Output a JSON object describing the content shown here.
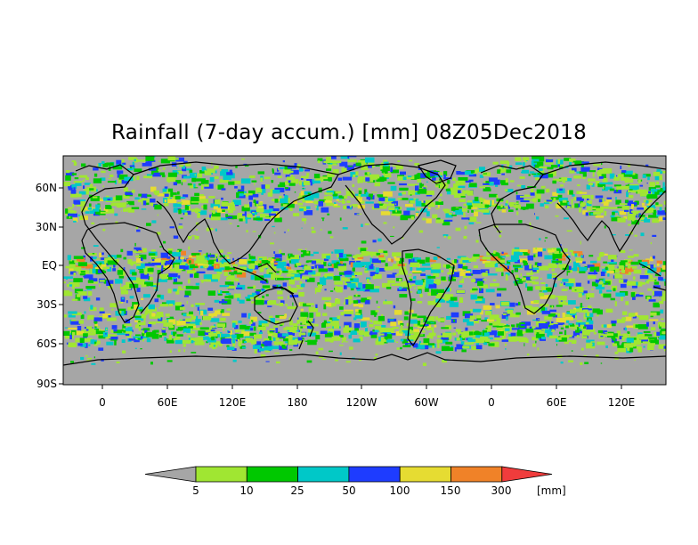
{
  "title": "Rainfall (7-day accum.) [mm] 08Z05Dec2018",
  "lat_labels": [
    "60N",
    "30N",
    "EQ",
    "30S",
    "60S",
    "90S"
  ],
  "lon_labels": [
    "0",
    "60E",
    "120E",
    "180",
    "120W",
    "60W",
    "0",
    "60E",
    "120E"
  ],
  "colorbar": {
    "thresholds": [
      "5",
      "10",
      "25",
      "50",
      "100",
      "150",
      "300"
    ],
    "unit": "[mm]",
    "bins": [
      {
        "label": "<5",
        "color": "#a6a6a6"
      },
      {
        "label": "5-10",
        "color": "#a0e632"
      },
      {
        "label": "10-25",
        "color": "#00c800"
      },
      {
        "label": "25-50",
        "color": "#00c8c8"
      },
      {
        "label": "50-100",
        "color": "#1e3cff"
      },
      {
        "label": "100-150",
        "color": "#e6dc32"
      },
      {
        "label": "150-300",
        "color": "#f08228"
      },
      {
        "label": ">300",
        "color": "#f03c3c"
      }
    ]
  },
  "colors": {
    "no_rain": "#a6a6a6",
    "coastline": "#000000"
  }
}
